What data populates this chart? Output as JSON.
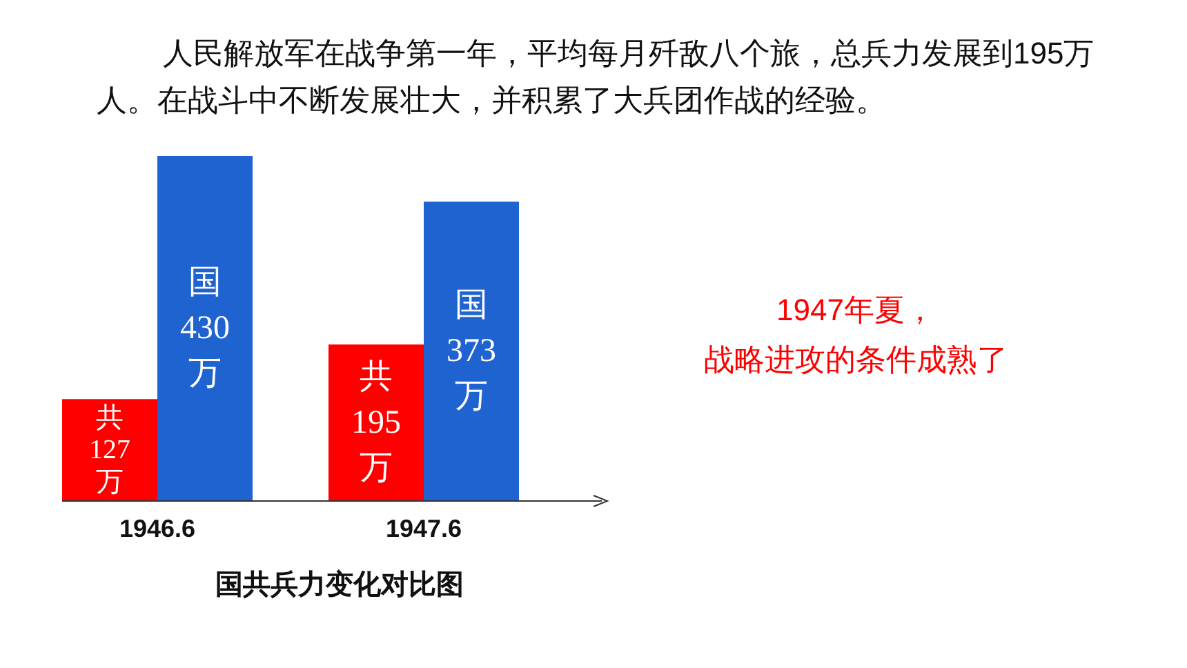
{
  "chart_data": {
    "type": "bar",
    "title": "国共兵力变化对比图",
    "subtitle": "人民解放军在战争第一年，平均每月歼敌八个旅，总兵力发展到195万人。在战斗中不断发展壮大，并积累了大兵团作战的经验。",
    "categories": [
      "1946.6",
      "1947.6"
    ],
    "series": [
      {
        "name": "共",
        "color": "#ff0000",
        "values": [
          127,
          195
        ],
        "value_labels": [
          "127 万",
          "195 万"
        ]
      },
      {
        "name": "国",
        "color": "#1f63d0",
        "values": [
          430,
          373
        ],
        "value_labels": [
          "430 万",
          "373 万"
        ]
      }
    ],
    "annotations": [
      "1947年夏，",
      "战略进攻的条件成熟了"
    ]
  }
}
